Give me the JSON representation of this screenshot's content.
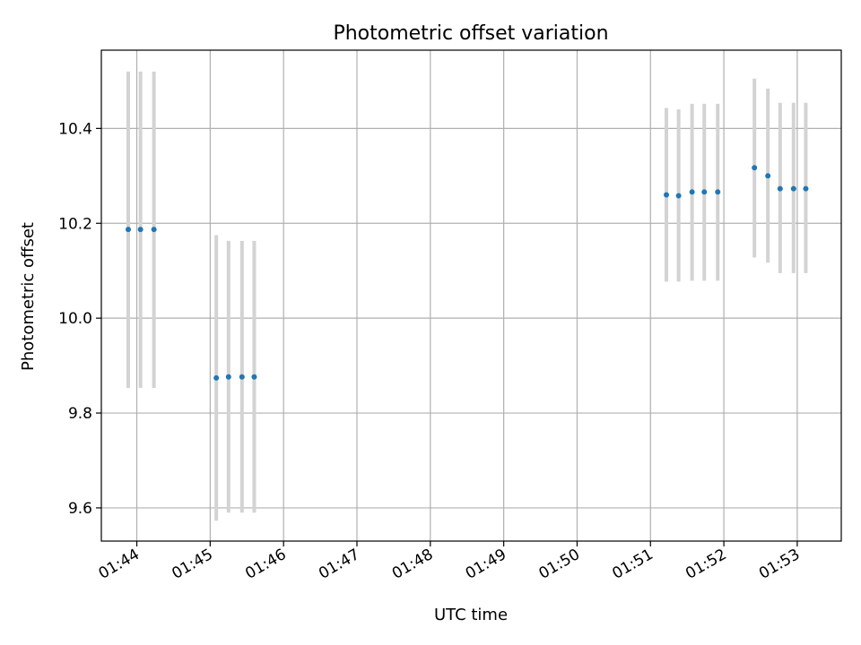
{
  "chart_data": {
    "type": "scatter",
    "title": "Photometric offset variation",
    "xlabel": "UTC time",
    "ylabel": "Photometric offset",
    "x_ticks": [
      "01:44",
      "01:45",
      "01:46",
      "01:47",
      "01:48",
      "01:49",
      "01:50",
      "01:51",
      "01:52",
      "01:53"
    ],
    "y_ticks": [
      "9.6",
      "9.8",
      "10.0",
      "10.2",
      "10.4"
    ],
    "xlim": [
      "01:43:31",
      "01:53:36"
    ],
    "ylim": [
      9.53,
      10.565
    ],
    "grid": true,
    "colors": {
      "points": "#1f77b4",
      "errorbars": "#d3d3d3",
      "grid": "#b0b0b0"
    },
    "points": [
      {
        "x": "01:43:53",
        "y": 10.187,
        "yerr_low": 9.853,
        "yerr_high": 10.52
      },
      {
        "x": "01:44:03",
        "y": 10.187,
        "yerr_low": 9.853,
        "yerr_high": 10.52
      },
      {
        "x": "01:44:14",
        "y": 10.187,
        "yerr_low": 9.853,
        "yerr_high": 10.52
      },
      {
        "x": "01:45:05",
        "y": 9.874,
        "yerr_low": 9.573,
        "yerr_high": 10.175
      },
      {
        "x": "01:45:15",
        "y": 9.876,
        "yerr_low": 9.59,
        "yerr_high": 10.163
      },
      {
        "x": "01:45:26",
        "y": 9.876,
        "yerr_low": 9.59,
        "yerr_high": 10.163
      },
      {
        "x": "01:45:36",
        "y": 9.876,
        "yerr_low": 9.59,
        "yerr_high": 10.163
      },
      {
        "x": "01:51:13",
        "y": 10.26,
        "yerr_low": 10.077,
        "yerr_high": 10.443
      },
      {
        "x": "01:51:23",
        "y": 10.258,
        "yerr_low": 10.077,
        "yerr_high": 10.44
      },
      {
        "x": "01:51:34",
        "y": 10.266,
        "yerr_low": 10.079,
        "yerr_high": 10.452
      },
      {
        "x": "01:51:44",
        "y": 10.266,
        "yerr_low": 10.079,
        "yerr_high": 10.452
      },
      {
        "x": "01:51:55",
        "y": 10.266,
        "yerr_low": 10.079,
        "yerr_high": 10.452
      },
      {
        "x": "01:52:25",
        "y": 10.317,
        "yerr_low": 10.128,
        "yerr_high": 10.505
      },
      {
        "x": "01:52:36",
        "y": 10.3,
        "yerr_low": 10.117,
        "yerr_high": 10.484
      },
      {
        "x": "01:52:46",
        "y": 10.273,
        "yerr_low": 10.095,
        "yerr_high": 10.454
      },
      {
        "x": "01:52:57",
        "y": 10.273,
        "yerr_low": 10.095,
        "yerr_high": 10.454
      },
      {
        "x": "01:53:07",
        "y": 10.273,
        "yerr_low": 10.095,
        "yerr_high": 10.454
      }
    ]
  }
}
